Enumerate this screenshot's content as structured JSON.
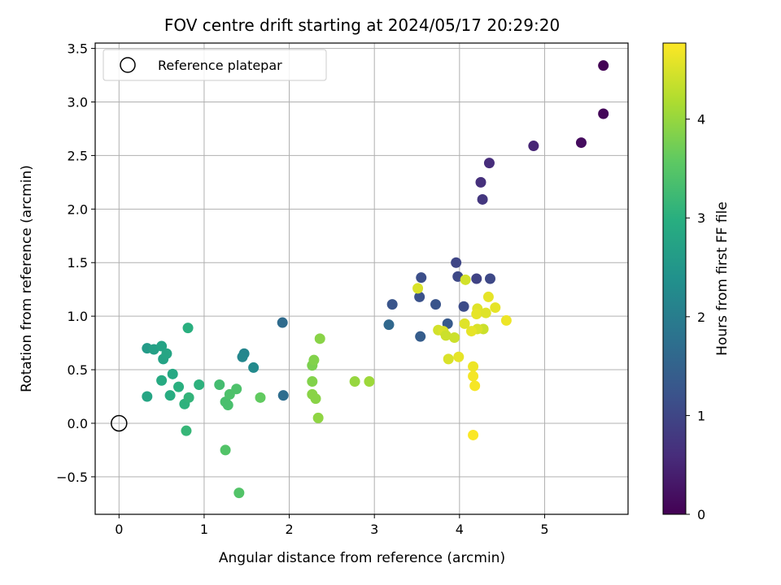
{
  "chart_data": {
    "type": "scatter",
    "title": "FOV centre drift starting at 2024/05/17 20:29:20",
    "xlabel": "Angular distance from reference (arcmin)",
    "ylabel": "Rotation from reference (arcmin)",
    "xlim": [
      -0.28,
      5.98
    ],
    "ylim": [
      -0.85,
      3.55
    ],
    "xticks": [
      0,
      1,
      2,
      3,
      4,
      5
    ],
    "yticks": [
      -0.5,
      0.0,
      0.5,
      1.0,
      1.5,
      2.0,
      2.5,
      3.0,
      3.5
    ],
    "xtick_labels": [
      "0",
      "1",
      "2",
      "3",
      "4",
      "5"
    ],
    "ytick_labels": [
      "−0.5",
      "0.0",
      "0.5",
      "1.0",
      "1.5",
      "2.0",
      "2.5",
      "3.0",
      "3.5"
    ],
    "grid": true,
    "legend": {
      "placement": "top-left",
      "entries": [
        "Reference platepar"
      ]
    },
    "reference_point": {
      "name": "Reference platepar",
      "x": 0.0,
      "y": 0.0
    },
    "colorbar": {
      "label": "Hours from first FF file",
      "colormap": "viridis",
      "range": [
        0,
        4.77
      ],
      "ticks": [
        0,
        1,
        2,
        3,
        4
      ],
      "tick_labels": [
        "0",
        "1",
        "2",
        "3",
        "4"
      ]
    },
    "points": [
      {
        "x": 5.69,
        "y": 3.34,
        "c": 0.02
      },
      {
        "x": 5.69,
        "y": 2.89,
        "c": 0.08
      },
      {
        "x": 5.43,
        "y": 2.62,
        "c": 0.15
      },
      {
        "x": 4.87,
        "y": 2.59,
        "c": 0.5
      },
      {
        "x": 4.35,
        "y": 2.43,
        "c": 0.6
      },
      {
        "x": 4.25,
        "y": 2.25,
        "c": 0.65
      },
      {
        "x": 4.27,
        "y": 2.09,
        "c": 0.75
      },
      {
        "x": 3.96,
        "y": 1.5,
        "c": 1.0
      },
      {
        "x": 4.2,
        "y": 1.35,
        "c": 0.95
      },
      {
        "x": 4.36,
        "y": 1.35,
        "c": 1.05
      },
      {
        "x": 3.98,
        "y": 1.37,
        "c": 1.05
      },
      {
        "x": 3.55,
        "y": 1.36,
        "c": 1.15
      },
      {
        "x": 3.53,
        "y": 1.18,
        "c": 1.2
      },
      {
        "x": 3.21,
        "y": 1.11,
        "c": 1.25
      },
      {
        "x": 3.72,
        "y": 1.11,
        "c": 1.25
      },
      {
        "x": 4.05,
        "y": 1.09,
        "c": 1.1
      },
      {
        "x": 3.86,
        "y": 0.93,
        "c": 1.35
      },
      {
        "x": 3.54,
        "y": 0.81,
        "c": 1.4
      },
      {
        "x": 3.17,
        "y": 0.92,
        "c": 1.6
      },
      {
        "x": 1.92,
        "y": 0.94,
        "c": 1.65
      },
      {
        "x": 1.93,
        "y": 0.26,
        "c": 1.7
      },
      {
        "x": 1.47,
        "y": 0.65,
        "c": 2.15
      },
      {
        "x": 1.45,
        "y": 0.62,
        "c": 2.2
      },
      {
        "x": 1.58,
        "y": 0.52,
        "c": 2.25
      },
      {
        "x": 0.33,
        "y": 0.7,
        "c": 2.6
      },
      {
        "x": 0.41,
        "y": 0.69,
        "c": 2.7
      },
      {
        "x": 0.5,
        "y": 0.72,
        "c": 2.75
      },
      {
        "x": 0.52,
        "y": 0.6,
        "c": 2.75
      },
      {
        "x": 0.56,
        "y": 0.65,
        "c": 2.8
      },
      {
        "x": 0.63,
        "y": 0.46,
        "c": 2.85
      },
      {
        "x": 0.33,
        "y": 0.25,
        "c": 2.8
      },
      {
        "x": 0.5,
        "y": 0.4,
        "c": 2.9
      },
      {
        "x": 0.6,
        "y": 0.26,
        "c": 2.95
      },
      {
        "x": 0.7,
        "y": 0.34,
        "c": 3.0
      },
      {
        "x": 0.81,
        "y": 0.89,
        "c": 3.0
      },
      {
        "x": 0.94,
        "y": 0.36,
        "c": 3.05
      },
      {
        "x": 0.77,
        "y": 0.18,
        "c": 3.05
      },
      {
        "x": 0.82,
        "y": 0.24,
        "c": 3.1
      },
      {
        "x": 0.79,
        "y": -0.07,
        "c": 3.15
      },
      {
        "x": 1.18,
        "y": 0.36,
        "c": 3.3
      },
      {
        "x": 1.25,
        "y": 0.2,
        "c": 3.35
      },
      {
        "x": 1.28,
        "y": 0.17,
        "c": 3.35
      },
      {
        "x": 1.3,
        "y": 0.27,
        "c": 3.4
      },
      {
        "x": 1.38,
        "y": 0.32,
        "c": 3.4
      },
      {
        "x": 1.25,
        "y": -0.25,
        "c": 3.45
      },
      {
        "x": 1.41,
        "y": -0.65,
        "c": 3.45
      },
      {
        "x": 1.66,
        "y": 0.24,
        "c": 3.6
      },
      {
        "x": 2.27,
        "y": 0.54,
        "c": 3.8
      },
      {
        "x": 2.29,
        "y": 0.59,
        "c": 3.85
      },
      {
        "x": 2.36,
        "y": 0.79,
        "c": 3.9
      },
      {
        "x": 2.27,
        "y": 0.39,
        "c": 3.85
      },
      {
        "x": 2.27,
        "y": 0.27,
        "c": 3.9
      },
      {
        "x": 2.31,
        "y": 0.23,
        "c": 3.9
      },
      {
        "x": 2.34,
        "y": 0.05,
        "c": 3.95
      },
      {
        "x": 2.77,
        "y": 0.39,
        "c": 4.0
      },
      {
        "x": 2.94,
        "y": 0.39,
        "c": 4.05
      },
      {
        "x": 3.51,
        "y": 1.26,
        "c": 4.5
      },
      {
        "x": 4.07,
        "y": 1.34,
        "c": 4.45
      },
      {
        "x": 4.34,
        "y": 1.18,
        "c": 4.6
      },
      {
        "x": 4.42,
        "y": 1.08,
        "c": 4.6
      },
      {
        "x": 4.21,
        "y": 1.07,
        "c": 4.55
      },
      {
        "x": 4.2,
        "y": 1.02,
        "c": 4.6
      },
      {
        "x": 4.31,
        "y": 1.03,
        "c": 4.55
      },
      {
        "x": 4.55,
        "y": 0.96,
        "c": 4.65
      },
      {
        "x": 4.06,
        "y": 0.93,
        "c": 4.55
      },
      {
        "x": 4.28,
        "y": 0.88,
        "c": 4.4
      },
      {
        "x": 4.21,
        "y": 0.88,
        "c": 4.5
      },
      {
        "x": 4.14,
        "y": 0.86,
        "c": 4.6
      },
      {
        "x": 3.75,
        "y": 0.87,
        "c": 4.45
      },
      {
        "x": 3.81,
        "y": 0.86,
        "c": 4.5
      },
      {
        "x": 3.84,
        "y": 0.82,
        "c": 4.4
      },
      {
        "x": 3.94,
        "y": 0.8,
        "c": 4.4
      },
      {
        "x": 3.87,
        "y": 0.6,
        "c": 4.5
      },
      {
        "x": 3.99,
        "y": 0.62,
        "c": 4.6
      },
      {
        "x": 4.16,
        "y": 0.53,
        "c": 4.65
      },
      {
        "x": 4.16,
        "y": 0.44,
        "c": 4.7
      },
      {
        "x": 4.18,
        "y": 0.35,
        "c": 4.72
      },
      {
        "x": 4.16,
        "y": -0.11,
        "c": 4.75
      }
    ]
  }
}
